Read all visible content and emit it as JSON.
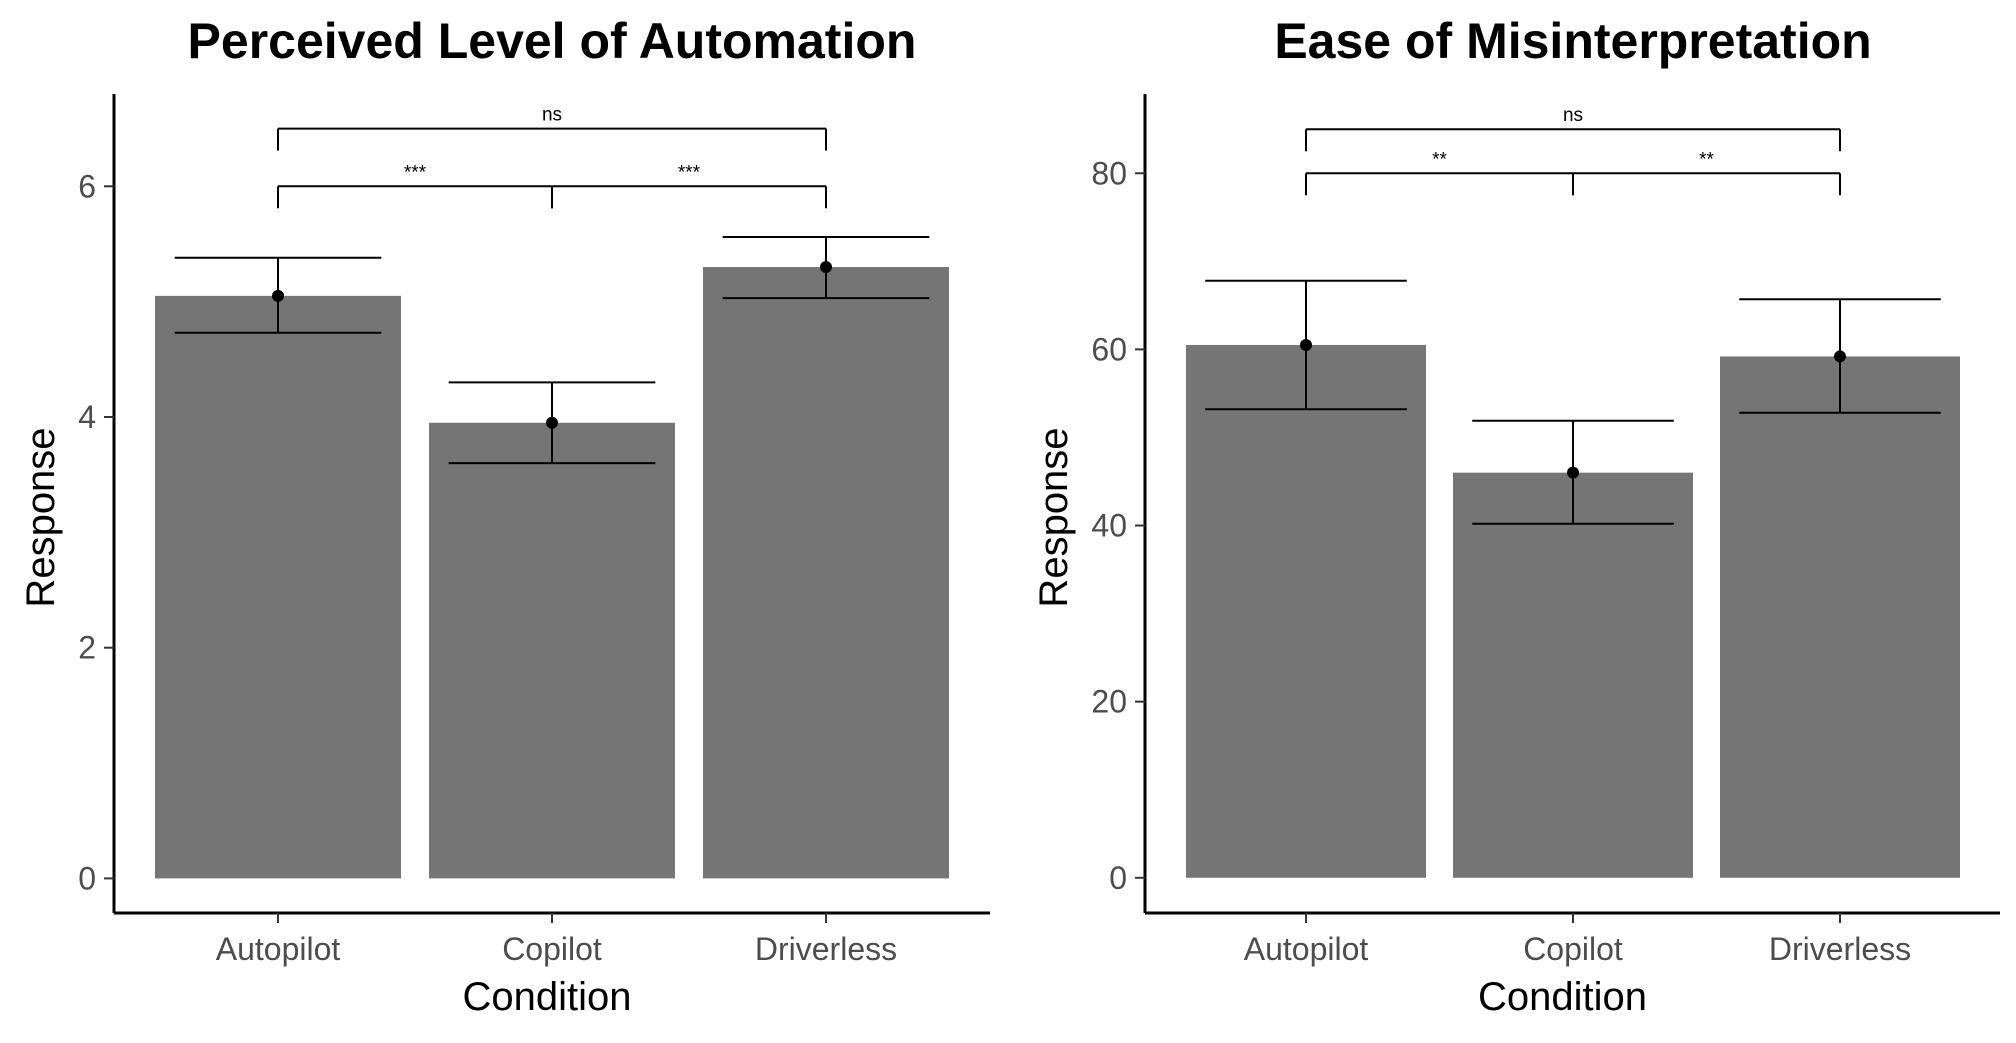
{
  "chart_data": [
    {
      "type": "bar",
      "title": "Perceived Level of Automation",
      "xlabel": "Condition",
      "ylabel": "Response",
      "categories": [
        "Autopilot",
        "Copilot",
        "Driverless"
      ],
      "values": [
        5.05,
        3.95,
        5.3
      ],
      "error_bars": [
        {
          "low": 4.73,
          "high": 5.38
        },
        {
          "low": 3.6,
          "high": 4.3
        },
        {
          "low": 5.03,
          "high": 5.56
        }
      ],
      "ylim": [
        -0.3,
        6.8
      ],
      "yticks": [
        0,
        2,
        4,
        6
      ],
      "grid": false,
      "bar_color": "#757575",
      "significance": [
        {
          "from": "Autopilot",
          "to": "Driverless",
          "label": "ns",
          "y": 6.5
        },
        {
          "from": "Autopilot",
          "to": "Copilot",
          "label": "***",
          "y": 6.0
        },
        {
          "from": "Copilot",
          "to": "Driverless",
          "label": "***",
          "y": 6.0
        }
      ]
    },
    {
      "type": "bar",
      "title": "Ease of Misinterpretation",
      "xlabel": "Condition",
      "ylabel": "Response",
      "categories": [
        "Autopilot",
        "Copilot",
        "Driverless"
      ],
      "values": [
        60.5,
        46,
        59.2
      ],
      "error_bars": [
        {
          "low": 53.2,
          "high": 67.8
        },
        {
          "low": 40.2,
          "high": 51.9
        },
        {
          "low": 52.8,
          "high": 65.7
        }
      ],
      "ylim": [
        -4,
        89
      ],
      "yticks": [
        0,
        20,
        40,
        60,
        80
      ],
      "grid": false,
      "bar_color": "#757575",
      "significance": [
        {
          "from": "Autopilot",
          "to": "Driverless",
          "label": "ns",
          "y": 85
        },
        {
          "from": "Autopilot",
          "to": "Copilot",
          "label": "**",
          "y": 80
        },
        {
          "from": "Copilot",
          "to": "Driverless",
          "label": "**",
          "y": 80
        }
      ]
    }
  ]
}
